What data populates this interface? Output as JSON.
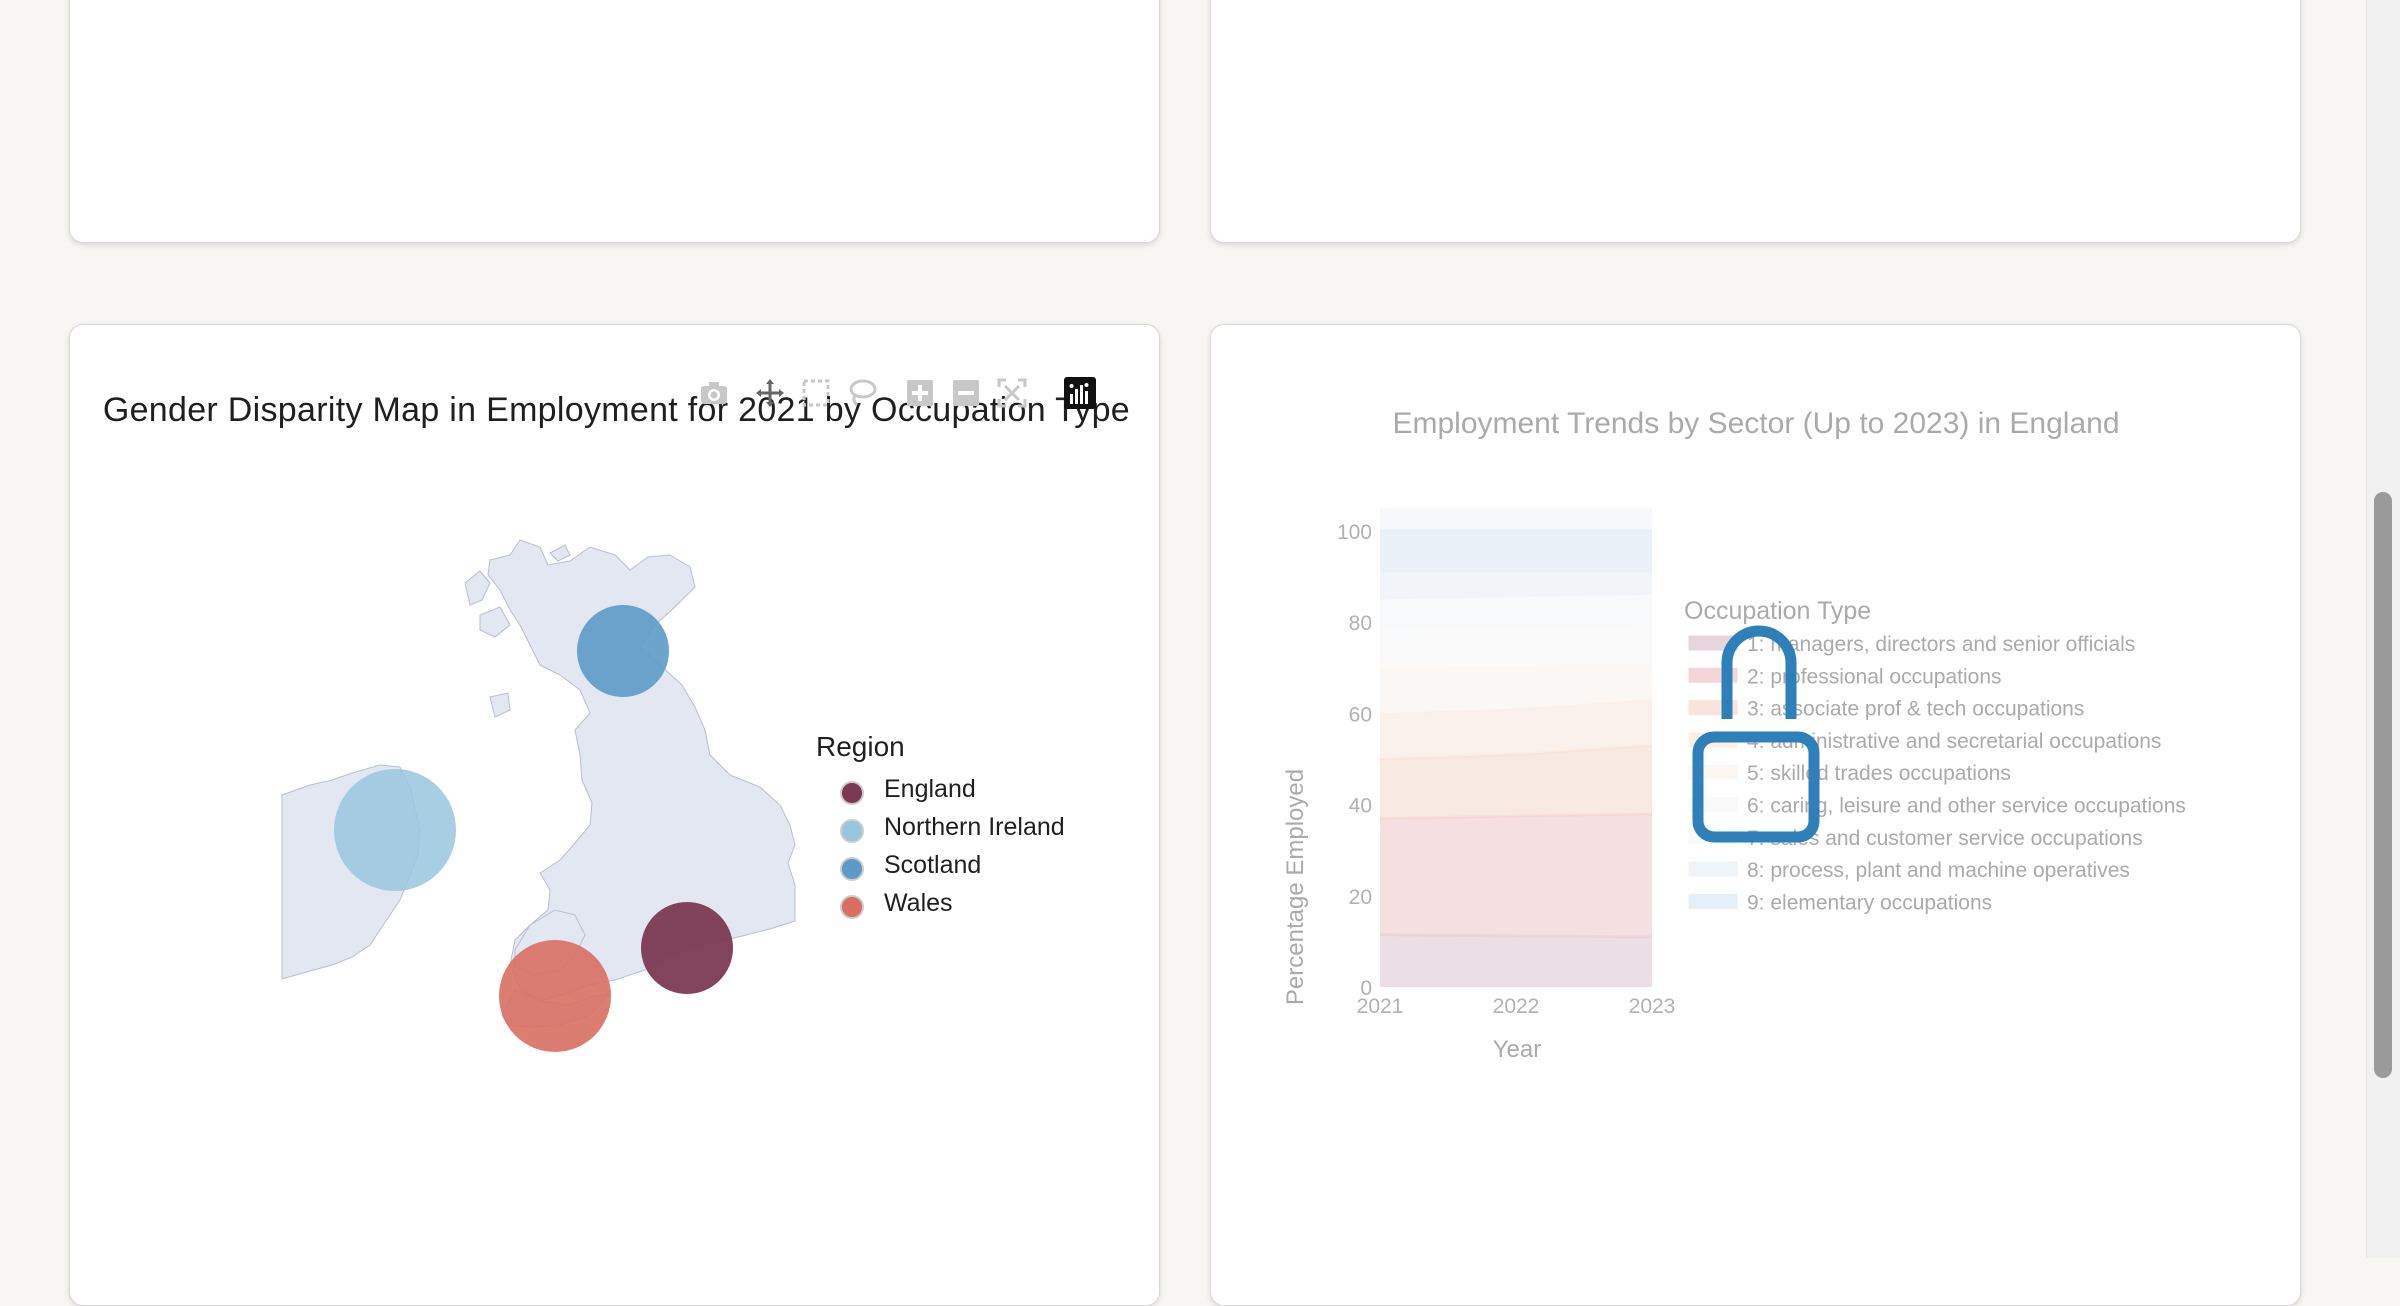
{
  "colors": {
    "england": "#7b3a52",
    "northern_ireland": "#99c6df",
    "scotland": "#5d9ac8",
    "wales": "#d86f62",
    "land": "#e2e7f2",
    "cursor": "#2f80b8"
  },
  "map_card": {
    "title": "Gender Disparity Map in Employment for 2021 by Occupation Type",
    "modebar": [
      "camera-icon",
      "pan-icon",
      "box-select-icon",
      "lasso-icon",
      "zoom-in-icon",
      "zoom-out-icon",
      "autoscale-icon",
      "plotly-logo-icon"
    ],
    "legend": {
      "title": "Region",
      "items": [
        {
          "label": "England",
          "color": "#7b3a52"
        },
        {
          "label": "Northern Ireland",
          "color": "#99c6df"
        },
        {
          "label": "Scotland",
          "color": "#5d9ac8"
        },
        {
          "label": "Wales",
          "color": "#d86f62"
        }
      ]
    }
  },
  "trend_card": {
    "title": "Employment Trends by Sector (Up to 2023) in England",
    "legend_title": "Occupation Type",
    "legend_items": [
      {
        "label": "1: managers, directors and senior officials",
        "color": "#c9a3b4"
      },
      {
        "label": "2: professional occupations",
        "color": "#e9a6aa"
      },
      {
        "label": "3: associate prof & tech occupations",
        "color": "#f2c4b0"
      },
      {
        "label": "4: administrative and secretarial occupations",
        "color": "#f8dccb"
      },
      {
        "label": "5: skilled trades occupations",
        "color": "#fbeee6"
      },
      {
        "label": "6: caring, leisure and other service occupations",
        "color": "#f6f6f6"
      },
      {
        "label": "7: sales and customer service occupations",
        "color": "#eef3f8"
      },
      {
        "label": "8: process, plant and machine operatives",
        "color": "#dce8f3"
      },
      {
        "label": "9: elementary occupations",
        "color": "#c7dcee"
      }
    ]
  },
  "chart_data": {
    "type": "area",
    "title": "Employment Trends by Sector (Up to 2023) in England",
    "xlabel": "Year",
    "ylabel": "Percentage Employed",
    "x": [
      2021,
      2022,
      2023
    ],
    "x_ticks": [
      "2021",
      "2022",
      "2023"
    ],
    "y_ticks": [
      "0",
      "20",
      "40",
      "60",
      "80",
      "100"
    ],
    "ylim": [
      0,
      100
    ],
    "stacked": true,
    "legend_placement": "right",
    "series": [
      {
        "name": "1: managers, directors and senior officials",
        "cumulative": [
          11.5,
          11.2,
          11.0
        ],
        "color": "#c9a3b4"
      },
      {
        "name": "2: professional occupations",
        "cumulative": [
          37.0,
          37.5,
          38.0
        ],
        "color": "#e9a6aa"
      },
      {
        "name": "3: associate prof & tech occupations",
        "cumulative": [
          50.0,
          51.0,
          53.0
        ],
        "color": "#f2c4b0"
      },
      {
        "name": "4: administrative and secretarial occupations",
        "cumulative": [
          60.0,
          61.0,
          63.0
        ],
        "color": "#f8dccb"
      },
      {
        "name": "5: skilled trades occupations",
        "cumulative": [
          70.0,
          70.5,
          71.0
        ],
        "color": "#fbeee6"
      },
      {
        "name": "6: caring, leisure and other service occupations",
        "cumulative": [
          78.0,
          78.5,
          79.0
        ],
        "color": "#f6f6f6"
      },
      {
        "name": "7: sales and customer service occupations",
        "cumulative": [
          85.0,
          85.5,
          86.0
        ],
        "color": "#eef3f8"
      },
      {
        "name": "8: process, plant and machine operatives",
        "cumulative": [
          91.0,
          91.0,
          91.0
        ],
        "color": "#dce8f3"
      },
      {
        "name": "9: elementary occupations",
        "cumulative": [
          100.0,
          100.0,
          100.0
        ],
        "color": "#c7dcee"
      }
    ]
  }
}
